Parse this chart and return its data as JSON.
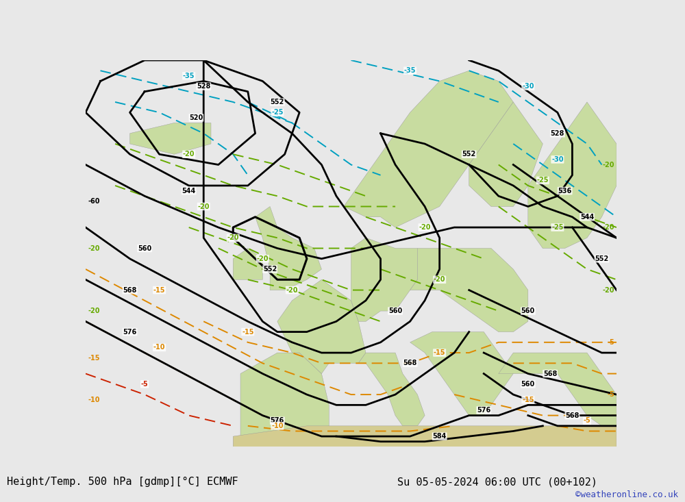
{
  "title_left": "Height/Temp. 500 hPa [gdmp][°C] ECMWF",
  "title_right": "Su 05-05-2024 06:00 UTC (00+102)",
  "credit": "©weatheronline.co.uk",
  "fig_width": 10.0,
  "fig_height": 7.33,
  "title_fontsize": 11,
  "credit_fontsize": 9,
  "credit_color": "#3344bb",
  "sea_color": "#d8d8d8",
  "land_color": "#c8dca0",
  "africa_color": "#d4cc90",
  "fig_bg": "#e8e8e8",
  "lon_min": -30,
  "lon_max": 42,
  "lat_min": 35,
  "lat_max": 72,
  "color_height": "#000000",
  "color_temp_cold": "#00a0c0",
  "color_temp_mild": "#66aa00",
  "color_temp_warm": "#dd8800",
  "color_temp_hot": "#cc2200"
}
